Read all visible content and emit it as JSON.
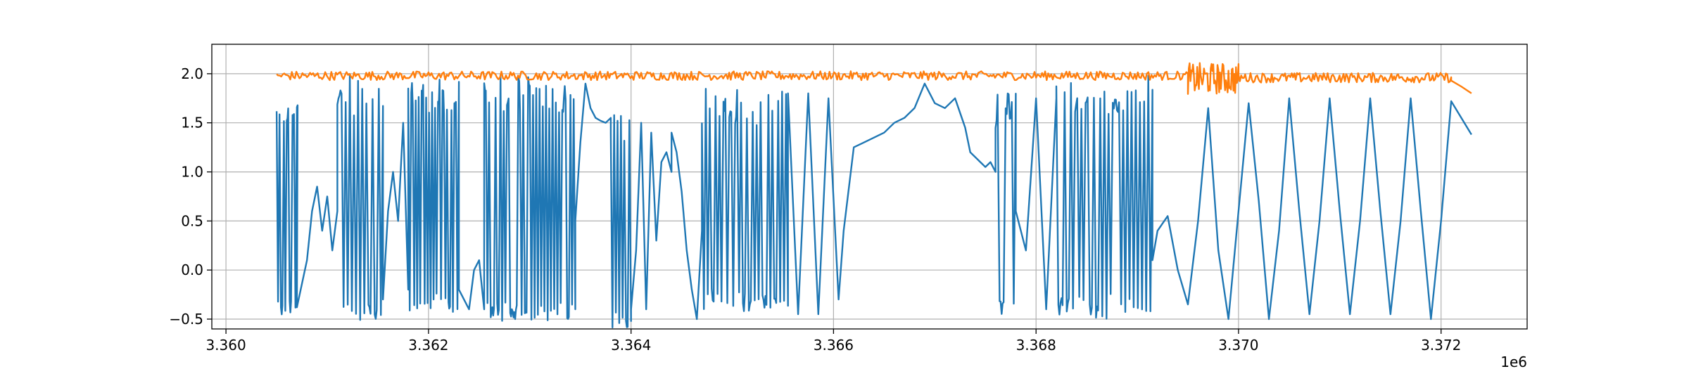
{
  "chart_data": {
    "type": "line",
    "title": "",
    "xlabel": "",
    "ylabel": "",
    "x_offset_label": "1e6",
    "xlim": [
      3.35986,
      3.37285
    ],
    "ylim": [
      -0.6,
      2.3
    ],
    "x_ticks": [
      3.36,
      3.362,
      3.364,
      3.366,
      3.368,
      3.37,
      3.372
    ],
    "x_tick_labels": [
      "3.360",
      "3.362",
      "3.364",
      "3.366",
      "3.368",
      "3.370",
      "3.372"
    ],
    "y_ticks": [
      -0.5,
      0.0,
      0.5,
      1.0,
      1.5,
      2.0
    ],
    "y_tick_labels": [
      "−0.5",
      "0.0",
      "0.5",
      "1.0",
      "1.5",
      "2.0"
    ],
    "grid": true,
    "legend": "none",
    "series": [
      {
        "color": "#1f77b4",
        "segments": [
          {
            "kind": "switching",
            "x": [
              3.3605,
              3.3607
            ],
            "low": -0.4,
            "high": 1.82,
            "n": 14
          },
          {
            "kind": "points",
            "x": [
              3.3607,
              3.3608,
              3.36085,
              3.3609,
              3.36095,
              3.361,
              3.36105,
              3.3611
            ],
            "y": [
              -0.38,
              0.1,
              0.6,
              0.85,
              0.4,
              0.75,
              0.2,
              0.6
            ]
          },
          {
            "kind": "switching",
            "x": [
              3.3611,
              3.36155
            ],
            "low": -0.45,
            "high": 1.95,
            "n": 22
          },
          {
            "kind": "points",
            "x": [
              3.36155,
              3.3616,
              3.36165,
              3.3617,
              3.36175,
              3.3618
            ],
            "y": [
              -0.3,
              0.6,
              1.0,
              0.5,
              1.5,
              -0.2
            ]
          },
          {
            "kind": "switching",
            "x": [
              3.3618,
              3.3623
            ],
            "low": -0.35,
            "high": 1.9,
            "n": 34
          },
          {
            "kind": "points",
            "x": [
              3.3623,
              3.3624,
              3.36245,
              3.3625,
              3.36255
            ],
            "y": [
              -0.2,
              -0.4,
              0.0,
              0.1,
              -0.4
            ]
          },
          {
            "kind": "switching",
            "x": [
              3.36255,
              3.36345
            ],
            "low": -0.45,
            "high": 1.95,
            "n": 56
          },
          {
            "kind": "points",
            "x": [
              3.36345,
              3.3635,
              3.36355,
              3.3636,
              3.36365,
              3.3637,
              3.36375,
              3.3638
            ],
            "y": [
              0.5,
              1.3,
              1.9,
              1.65,
              1.55,
              1.52,
              1.5,
              1.55
            ]
          },
          {
            "kind": "switching",
            "x": [
              3.3638,
              3.364
            ],
            "low": -0.55,
            "high": 1.6,
            "n": 12
          },
          {
            "kind": "points",
            "x": [
              3.364,
              3.36405,
              3.3641,
              3.36415,
              3.3642,
              3.36425,
              3.3643,
              3.36435,
              3.3644
            ],
            "y": [
              -0.4,
              0.2,
              1.5,
              -0.4,
              1.4,
              0.3,
              1.1,
              1.2,
              1.0
            ]
          },
          {
            "kind": "points",
            "x": [
              3.3644,
              3.36445,
              3.3645,
              3.36455,
              3.3646,
              3.36465,
              3.3647
            ],
            "y": [
              1.4,
              1.2,
              0.8,
              0.2,
              -0.2,
              -0.5,
              0.4
            ]
          },
          {
            "kind": "switching",
            "x": [
              3.3647,
              3.36555
            ],
            "low": -0.35,
            "high": 1.85,
            "n": 44
          },
          {
            "kind": "points",
            "x": [
              3.36555,
              3.36565,
              3.36575,
              3.36585,
              3.36595,
              3.36605,
              3.3661,
              3.3662,
              3.3663,
              3.3664,
              3.3665,
              3.3666,
              3.3667,
              3.3668,
              3.3669,
              3.367,
              3.3671,
              3.3672,
              3.3673,
              3.36735,
              3.3674,
              3.36745,
              3.3675,
              3.36755,
              3.3676
            ],
            "y": [
              1.8,
              -0.45,
              1.8,
              -0.45,
              1.75,
              -0.3,
              0.4,
              1.25,
              1.3,
              1.35,
              1.4,
              1.5,
              1.55,
              1.65,
              1.9,
              1.7,
              1.65,
              1.75,
              1.45,
              1.2,
              1.15,
              1.1,
              1.05,
              1.1,
              1.0
            ]
          },
          {
            "kind": "switching",
            "x": [
              3.3676,
              3.3678
            ],
            "low": -0.4,
            "high": 1.8,
            "n": 10
          },
          {
            "kind": "points",
            "x": [
              3.3678,
              3.3679,
              3.368,
              3.3681,
              3.3682
            ],
            "y": [
              0.6,
              0.2,
              1.75,
              -0.4,
              1.75
            ]
          },
          {
            "kind": "switching",
            "x": [
              3.3682,
              3.36915
            ],
            "low": -0.4,
            "high": 1.95,
            "n": 46
          },
          {
            "kind": "points",
            "x": [
              3.36915,
              3.3692,
              3.3693,
              3.3694,
              3.3695,
              3.3696,
              3.3697,
              3.3698,
              3.3699,
              3.37,
              3.3701,
              3.3702,
              3.3703,
              3.3704,
              3.3705,
              3.3706,
              3.3707,
              3.3708,
              3.3709,
              3.371,
              3.3711,
              3.3712,
              3.3713,
              3.3714,
              3.3715,
              3.3716,
              3.3717,
              3.3718,
              3.3719,
              3.372,
              3.3721,
              3.3722,
              3.3723
            ],
            "y": [
              0.1,
              0.4,
              0.55,
              0.0,
              -0.35,
              0.5,
              1.65,
              0.2,
              -0.5,
              0.6,
              1.7,
              0.7,
              -0.5,
              0.4,
              1.75,
              0.6,
              -0.45,
              0.5,
              1.75,
              0.6,
              -0.45,
              0.5,
              1.75,
              0.6,
              -0.45,
              0.5,
              1.75,
              0.6,
              -0.5,
              0.5,
              1.72,
              1.55,
              1.38
            ]
          }
        ]
      },
      {
        "color": "#ff7f0e",
        "segments": [
          {
            "kind": "noise",
            "x": [
              3.3605,
              3.3695
            ],
            "center": 1.98,
            "amplitude": 0.045,
            "n": 600
          },
          {
            "kind": "noise",
            "x": [
              3.3695,
              3.37
            ],
            "center": 1.95,
            "amplitude": 0.16,
            "n": 60
          },
          {
            "kind": "noise",
            "x": [
              3.37,
              3.3721
            ],
            "center": 1.96,
            "amplitude": 0.05,
            "n": 160
          },
          {
            "kind": "points",
            "x": [
              3.3721,
              3.3722,
              3.3723
            ],
            "y": [
              1.93,
              1.87,
              1.8
            ]
          }
        ]
      }
    ]
  }
}
